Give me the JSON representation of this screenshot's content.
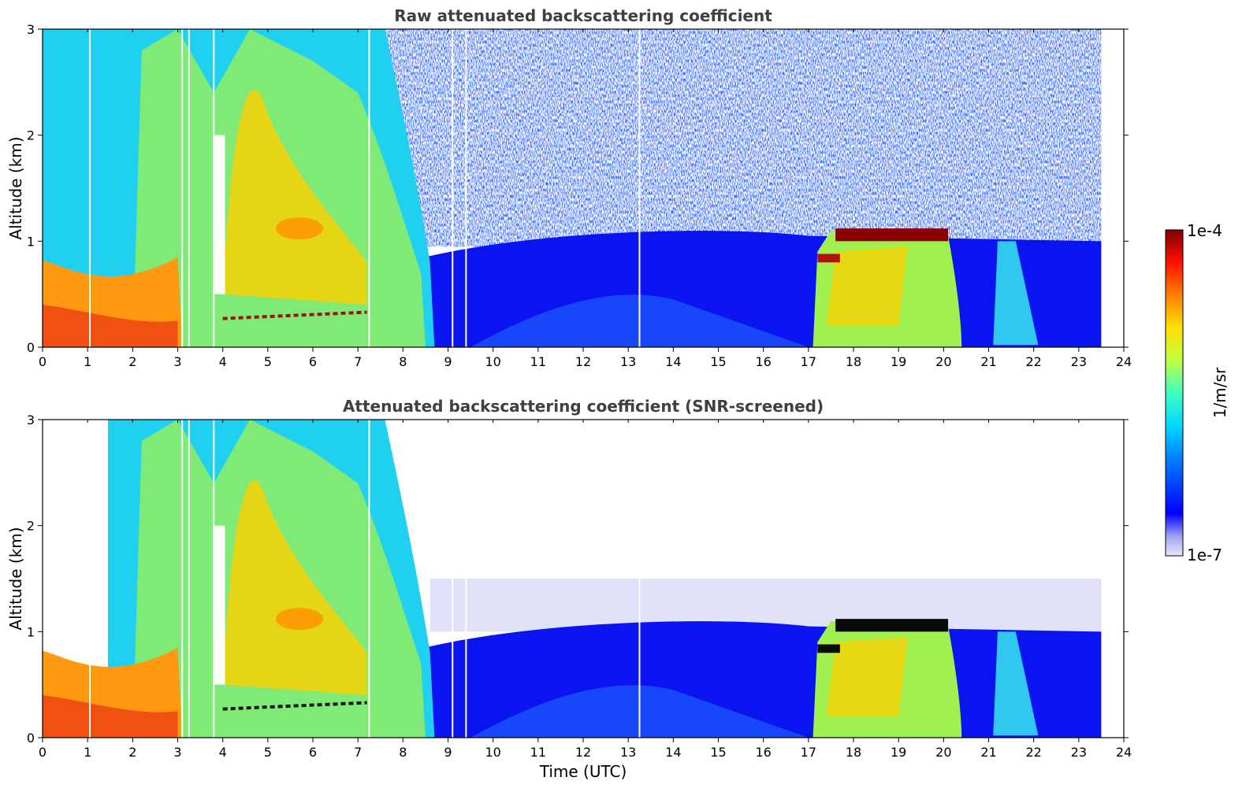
{
  "chart_data": [
    {
      "type": "heatmap",
      "title": "Raw attenuated backscattering coefficient",
      "xlabel": "",
      "ylabel": "Altitude (km)",
      "xlim": [
        0,
        24
      ],
      "ylim": [
        0,
        3
      ],
      "x_ticks": [
        "0",
        "1",
        "2",
        "3",
        "4",
        "5",
        "6",
        "7",
        "8",
        "9",
        "10",
        "11",
        "12",
        "13",
        "14",
        "15",
        "16",
        "17",
        "18",
        "19",
        "20",
        "21",
        "22",
        "23",
        "24"
      ],
      "y_ticks": [
        "0",
        "1",
        "2",
        "3"
      ],
      "data_end_time": 23.5,
      "gaps_utc": [
        1.05,
        3.1,
        3.25,
        3.8,
        7.25,
        9.1,
        9.4,
        13.25
      ],
      "features": [
        {
          "region": "surface aerosol layer",
          "t": [
            0,
            3
          ],
          "alt": [
            0,
            0.9
          ],
          "level": "high"
        },
        {
          "region": "thick clouds",
          "t": [
            1.5,
            8.6
          ],
          "alt": [
            0,
            3
          ],
          "level": "medium"
        },
        {
          "region": "noisy upper region",
          "t": [
            8.6,
            23.5
          ],
          "alt": [
            1.0,
            3
          ],
          "level": "noise"
        },
        {
          "region": "boundary layer",
          "t": [
            8.6,
            23.5
          ],
          "alt": [
            0,
            1.05
          ],
          "level": "low"
        },
        {
          "region": "cloud top",
          "t": [
            17.6,
            20.1
          ],
          "alt": [
            1.0,
            1.1
          ],
          "level": "max"
        },
        {
          "region": "afternoon layer",
          "t": [
            17.2,
            20.4
          ],
          "alt": [
            0,
            1.0
          ],
          "level": "medium"
        }
      ]
    },
    {
      "type": "heatmap",
      "title": "Attenuated backscattering coefficient (SNR-screened)",
      "xlabel": "Time (UTC)",
      "ylabel": "Altitude (km)",
      "xlim": [
        0,
        24
      ],
      "ylim": [
        0,
        3
      ],
      "x_ticks": [
        "0",
        "1",
        "2",
        "3",
        "4",
        "5",
        "6",
        "7",
        "8",
        "9",
        "10",
        "11",
        "12",
        "13",
        "14",
        "15",
        "16",
        "17",
        "18",
        "19",
        "20",
        "21",
        "22",
        "23",
        "24"
      ],
      "y_ticks": [
        "0",
        "1",
        "2",
        "3"
      ],
      "data_end_time": 23.5,
      "screened": true
    }
  ],
  "colorbar": {
    "label": "1/m/sr",
    "max_label": "1e-4",
    "min_label": "1e-7",
    "scale": "log",
    "range": [
      1e-07,
      0.0001
    ],
    "colormap": [
      "#e8e8f8",
      "#0000ff",
      "#00a0ff",
      "#00ffe0",
      "#80ff80",
      "#ffff00",
      "#ff8000",
      "#ff0000",
      "#800000"
    ]
  }
}
